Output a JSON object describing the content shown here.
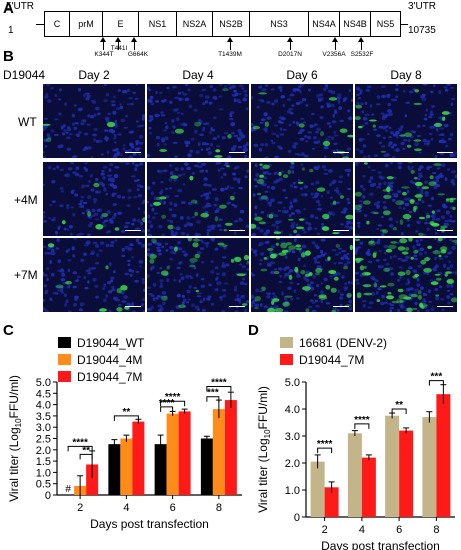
{
  "panels": {
    "a": "A",
    "b": "B",
    "c": "C",
    "d": "D"
  },
  "genome": {
    "utr5": "5'UTR",
    "utr3": "3'UTR",
    "start": "1",
    "end": "10735",
    "segments": [
      "C",
      "prM",
      "E",
      "NS1",
      "NS2A",
      "NS2B",
      "NS3",
      "NS4A",
      "NS4B",
      "NS5"
    ],
    "mutations": [
      "K344T",
      "T441I",
      "G664K",
      "T1439M",
      "D2017N",
      "V2356A",
      "S2532F"
    ]
  },
  "microscopy": {
    "strain": "D19044",
    "days": [
      "Day 2",
      "Day 4",
      "Day 6",
      "Day 8"
    ],
    "rows": [
      "WT",
      "+4M",
      "+7M"
    ],
    "colors": {
      "nuclei": "#1f2fb0",
      "virus": "#3de04a",
      "background": "#0a0d3a"
    }
  },
  "chart_data": [
    {
      "type": "bar",
      "panel": "C",
      "ylabel": "Viral titer (Log10FFU/ml)",
      "xlabel": "Days post transfection",
      "categories": [
        "2",
        "4",
        "6",
        "8"
      ],
      "ylim": [
        0,
        5.0
      ],
      "yticks": [
        "0",
        "0.5",
        "1.0",
        "1.5",
        "2.0",
        "2.5",
        "3.0",
        "3.5",
        "4.0",
        "4.5",
        "5.0"
      ],
      "series": [
        {
          "name": "D19044_WT",
          "color": "#000000",
          "values": [
            0,
            2.25,
            2.25,
            2.5
          ],
          "errors": [
            0,
            0.2,
            0.4,
            0.1
          ]
        },
        {
          "name": "D19044_4M",
          "color": "#ff8c1a",
          "values": [
            0.4,
            2.5,
            3.6,
            3.8
          ],
          "errors": [
            0.45,
            0.15,
            0.1,
            0.4
          ]
        },
        {
          "name": "D19044_7M",
          "color": "#ff1a1a",
          "values": [
            1.35,
            3.25,
            3.7,
            4.2
          ],
          "errors": [
            0.6,
            0.1,
            0.1,
            0.35
          ]
        }
      ],
      "annotations": [
        "#",
        "****",
        "**",
        "**",
        "****",
        "****",
        "***",
        "****"
      ]
    },
    {
      "type": "bar",
      "panel": "D",
      "ylabel": "Viral titer (Log10FFU/ml)",
      "xlabel": "Days post transfection",
      "categories": [
        "2",
        "4",
        "6",
        "8"
      ],
      "ylim": [
        0,
        5.0
      ],
      "yticks": [
        "0",
        "1.0",
        "2.0",
        "3.0",
        "4.0",
        "5.0"
      ],
      "series": [
        {
          "name": "16681 (DENV-2)",
          "color": "#c4b48a",
          "values": [
            2.05,
            3.1,
            3.75,
            3.7
          ],
          "errors": [
            0.25,
            0.1,
            0.1,
            0.2
          ]
        },
        {
          "name": "D19044_7M",
          "color": "#ff1a1a",
          "values": [
            1.1,
            2.2,
            3.2,
            4.55
          ],
          "errors": [
            0.2,
            0.1,
            0.1,
            0.35
          ]
        }
      ],
      "annotations": [
        "****",
        "****",
        "**",
        "***"
      ]
    }
  ]
}
